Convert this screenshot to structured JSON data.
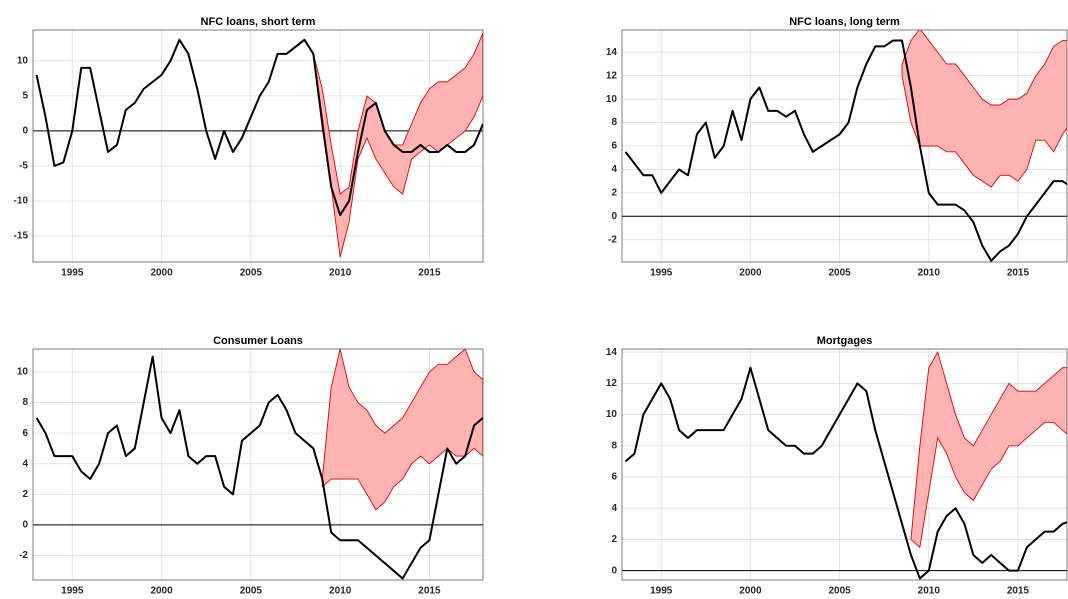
{
  "chart_data": [
    {
      "type": "line",
      "title": "NFC loans, short term",
      "xlim": [
        1992.8,
        2018.0
      ],
      "xticks": [
        1995,
        2000,
        2005,
        2010,
        2015
      ],
      "ylim": [
        -18.7,
        14.4
      ],
      "yticks": [
        -15,
        -10,
        -5,
        0,
        5,
        10
      ],
      "grid": true,
      "x": [
        1993,
        1993.5,
        1994,
        1994.5,
        1995,
        1995.5,
        1996,
        1996.5,
        1997,
        1997.5,
        1998,
        1998.5,
        1999,
        1999.5,
        2000,
        2000.5,
        2001,
        2001.5,
        2002,
        2002.5,
        2003,
        2003.5,
        2004,
        2004.5,
        2005,
        2005.5,
        2006,
        2006.5,
        2007,
        2007.5,
        2008,
        2008.5,
        2009,
        2009.5,
        2010,
        2010.5,
        2011,
        2011.5,
        2012,
        2012.5,
        2013,
        2013.5,
        2014,
        2014.5,
        2015,
        2015.5,
        2016,
        2016.5,
        2017,
        2017.5,
        2018
      ],
      "series": [
        {
          "color": "#000000",
          "values": [
            8,
            2,
            -5,
            -4.5,
            0,
            9,
            9,
            3,
            -3,
            -2,
            3,
            4,
            6,
            7,
            8,
            10,
            13,
            11,
            6,
            0,
            -4,
            0,
            -3,
            -1,
            2,
            5,
            7,
            11,
            11,
            12,
            13,
            11,
            1,
            -8,
            -12,
            -10,
            -3,
            3,
            4,
            0,
            -2,
            -3,
            -3,
            -2,
            -3,
            -3,
            -2,
            -3,
            -3,
            -2,
            1
          ]
        }
      ],
      "band": {
        "color": "#e00000",
        "fill": "#ffb3b3",
        "x": [
          2008.5,
          2009,
          2009.5,
          2010,
          2010.5,
          2011,
          2011.5,
          2012,
          2012.5,
          2013,
          2013.5,
          2014,
          2014.5,
          2015,
          2015.5,
          2016,
          2016.5,
          2017,
          2017.5,
          2018
        ],
        "upper": [
          11,
          6,
          -2,
          -9,
          -8,
          0,
          5,
          4,
          0,
          -2,
          -2,
          1,
          4,
          6,
          7,
          7,
          8,
          9,
          11,
          14
        ],
        "lower": [
          11,
          2,
          -8,
          -18,
          -13,
          -4,
          -1,
          -4,
          -6,
          -8,
          -9,
          -4,
          -3,
          -2,
          -3,
          -2,
          -1,
          0,
          2,
          5
        ]
      }
    },
    {
      "type": "line",
      "title": "NFC loans, long term",
      "xlim": [
        1992.8,
        2017.75
      ],
      "xticks": [
        1995,
        2000,
        2005,
        2010,
        2015
      ],
      "ylim": [
        -3.9,
        15.9
      ],
      "yticks": [
        -2,
        0,
        2,
        4,
        6,
        8,
        10,
        12,
        14
      ],
      "grid": true,
      "x": [
        1993,
        1993.5,
        1994,
        1994.5,
        1995,
        1995.5,
        1996,
        1996.5,
        1997,
        1997.5,
        1998,
        1998.5,
        1999,
        1999.5,
        2000,
        2000.5,
        2001,
        2001.5,
        2002,
        2002.5,
        2003,
        2003.5,
        2004,
        2004.5,
        2005,
        2005.5,
        2006,
        2006.5,
        2007,
        2007.5,
        2008,
        2008.5,
        2009,
        2009.5,
        2010,
        2010.5,
        2011,
        2011.5,
        2012,
        2012.5,
        2013,
        2013.5,
        2014,
        2014.5,
        2015,
        2015.5,
        2016,
        2016.5,
        2017,
        2017.5,
        2018
      ],
      "series": [
        {
          "color": "#000000",
          "values": [
            5.5,
            4.5,
            3.5,
            3.5,
            2,
            3,
            4,
            3.5,
            7,
            8,
            5,
            6,
            9,
            6.5,
            10,
            11,
            9,
            9,
            8.5,
            9,
            7,
            5.5,
            6,
            6.5,
            7,
            8,
            11,
            13,
            14.5,
            14.5,
            15,
            15,
            11,
            6,
            2,
            1,
            1,
            1,
            0.5,
            -0.5,
            -2.5,
            -3.8,
            -3,
            -2.5,
            -1.5,
            0,
            1,
            2,
            3,
            3,
            2.5
          ]
        }
      ],
      "band": {
        "color": "#e00000",
        "fill": "#ffb3b3",
        "x": [
          2008.5,
          2009,
          2009.5,
          2010,
          2010.5,
          2011,
          2011.5,
          2012,
          2012.5,
          2013,
          2013.5,
          2014,
          2014.5,
          2015,
          2015.5,
          2016,
          2016.5,
          2017,
          2017.5,
          2018
        ],
        "upper": [
          13,
          15,
          16,
          15,
          14,
          13,
          13,
          12,
          11,
          10,
          9.5,
          9.5,
          10,
          10,
          10.5,
          12,
          13,
          14.5,
          15,
          15
        ],
        "lower": [
          12,
          8,
          6,
          6,
          6,
          5.5,
          5.5,
          4.5,
          3.5,
          3,
          2.5,
          3.5,
          3.5,
          3,
          4,
          6.5,
          6.5,
          5.5,
          7,
          8
        ]
      }
    },
    {
      "type": "line",
      "title": "Consumer Loans",
      "xlim": [
        1992.8,
        2018.0
      ],
      "xticks": [
        1995,
        2000,
        2005,
        2010,
        2015
      ],
      "ylim": [
        -3.6,
        11.5
      ],
      "yticks": [
        -2,
        0,
        2,
        4,
        6,
        8,
        10
      ],
      "grid": true,
      "x": [
        1993,
        1993.5,
        1994,
        1994.5,
        1995,
        1995.5,
        1996,
        1996.5,
        1997,
        1997.5,
        1998,
        1998.5,
        1999,
        1999.5,
        2000,
        2000.5,
        2001,
        2001.5,
        2002,
        2002.5,
        2003,
        2003.5,
        2004,
        2004.5,
        2005,
        2005.5,
        2006,
        2006.5,
        2007,
        2007.5,
        2008,
        2008.5,
        2009,
        2009.5,
        2010,
        2010.5,
        2011,
        2011.5,
        2012,
        2012.5,
        2013,
        2013.5,
        2014,
        2014.5,
        2015,
        2015.5,
        2016,
        2016.5,
        2017,
        2017.5,
        2018
      ],
      "series": [
        {
          "color": "#000000",
          "values": [
            7,
            6,
            4.5,
            4.5,
            4.5,
            3.5,
            3,
            4,
            6,
            6.5,
            4.5,
            5,
            8,
            11,
            7,
            6,
            7.5,
            4.5,
            4,
            4.5,
            4.5,
            2.5,
            2,
            5.5,
            6,
            6.5,
            8,
            8.5,
            7.5,
            6,
            5.5,
            5,
            3,
            -0.5,
            -1,
            -1,
            -1,
            -1.5,
            -2,
            -2.5,
            -3,
            -3.5,
            -2.5,
            -1.5,
            -1,
            2,
            5,
            4,
            4.5,
            6.5,
            7
          ]
        }
      ],
      "band": {
        "color": "#e00000",
        "fill": "#ffb3b3",
        "x": [
          2009,
          2009.5,
          2010,
          2010.5,
          2011,
          2011.5,
          2012,
          2012.5,
          2013,
          2013.5,
          2014,
          2014.5,
          2015,
          2015.5,
          2016,
          2016.5,
          2017,
          2017.5,
          2018
        ],
        "upper": [
          3,
          9,
          11.5,
          9,
          8,
          7.5,
          6.5,
          6,
          6.5,
          7,
          8,
          9,
          10,
          10.5,
          10.5,
          11,
          11.5,
          10,
          9.5
        ],
        "lower": [
          2.5,
          3,
          3,
          3,
          3,
          2,
          1,
          1.5,
          2.5,
          3,
          4,
          4.5,
          4,
          4.5,
          5,
          4.5,
          4.5,
          5,
          4.5
        ]
      }
    },
    {
      "type": "line",
      "title": "Mortgages",
      "xlim": [
        1992.8,
        2017.75
      ],
      "xticks": [
        1995,
        2000,
        2005,
        2010,
        2015
      ],
      "ylim": [
        -0.6,
        14.2
      ],
      "yticks": [
        0,
        2,
        4,
        6,
        8,
        10,
        12,
        14
      ],
      "grid": true,
      "x": [
        1993,
        1993.5,
        1994,
        1994.5,
        1995,
        1995.5,
        1996,
        1996.5,
        1997,
        1997.5,
        1998,
        1998.5,
        1999,
        1999.5,
        2000,
        2000.5,
        2001,
        2001.5,
        2002,
        2002.5,
        2003,
        2003.5,
        2004,
        2004.5,
        2005,
        2005.5,
        2006,
        2006.5,
        2007,
        2007.5,
        2008,
        2008.5,
        2009,
        2009.5,
        2010,
        2010.5,
        2011,
        2011.5,
        2012,
        2012.5,
        2013,
        2013.5,
        2014,
        2014.5,
        2015,
        2015.5,
        2016,
        2016.5,
        2017,
        2017.5,
        2018
      ],
      "series": [
        {
          "color": "#000000",
          "values": [
            7,
            7.5,
            10,
            11,
            12,
            11,
            9,
            8.5,
            9,
            9,
            9,
            9,
            10,
            11,
            13,
            11,
            9,
            8.5,
            8,
            8,
            7.5,
            7.5,
            8,
            9,
            10,
            11,
            12,
            11.5,
            9,
            7,
            5,
            3,
            1,
            -0.5,
            0,
            2.5,
            3.5,
            4,
            3,
            1,
            0.5,
            1,
            0.5,
            0,
            0,
            1.5,
            2,
            2.5,
            2.5,
            3,
            3.2
          ]
        }
      ],
      "band": {
        "color": "#e00000",
        "fill": "#ffb3b3",
        "x": [
          2009,
          2009.5,
          2010,
          2010.5,
          2011,
          2011.5,
          2012,
          2012.5,
          2013,
          2013.5,
          2014,
          2014.5,
          2015,
          2015.5,
          2016,
          2016.5,
          2017,
          2017.5,
          2018
        ],
        "upper": [
          2,
          8,
          13,
          14,
          12,
          10,
          8.5,
          8,
          9,
          10,
          11,
          12,
          11.5,
          11.5,
          11.5,
          12,
          12.5,
          13,
          13
        ],
        "lower": [
          2,
          1.5,
          5,
          8.5,
          7.5,
          6,
          5,
          4.5,
          5.5,
          6.5,
          7,
          8,
          8,
          8.5,
          9,
          9.5,
          9.5,
          9,
          8.5
        ]
      }
    }
  ]
}
